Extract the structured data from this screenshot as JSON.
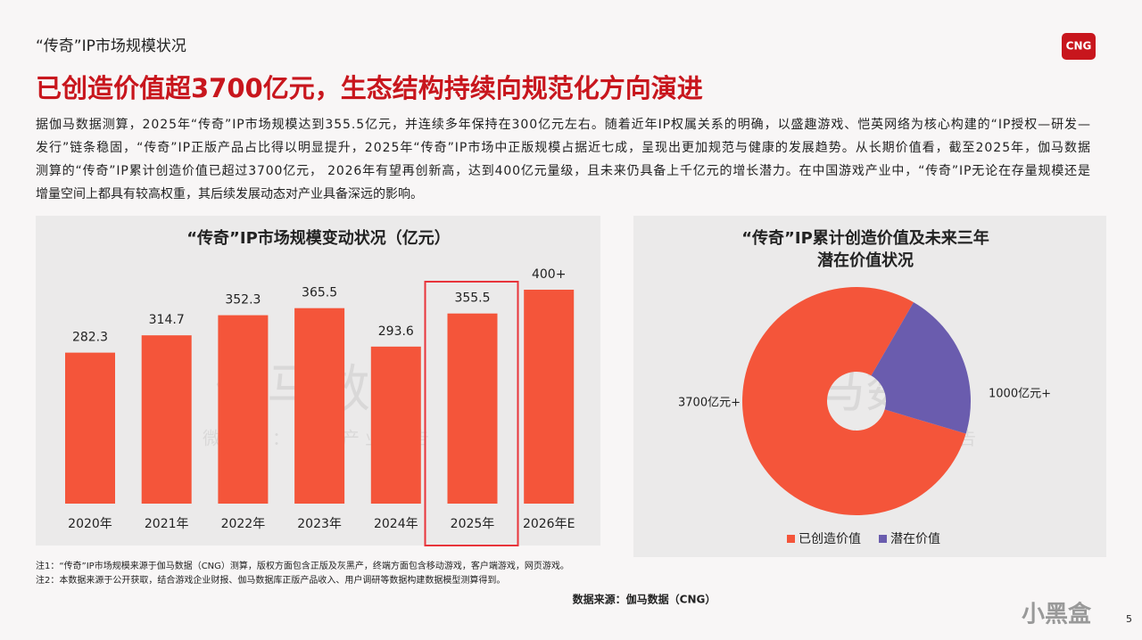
{
  "header": {
    "section": "“传奇”IP市场规模状况",
    "title": "已创造价值超3700亿元，生态结构持续向规范化方向演进",
    "logo": "CNG"
  },
  "paragraph": [
    "据伽马数据测算，2025年“传奇”IP市场规模达到355.5亿元，并连续多年保持在300亿元左右。随着近年IP权属关系的明确，以盛趣游戏、恺英网络为核心构建的“IP授权—研发—",
    "发行”链条稳固，“传奇”IP正版产品占比得以明显提升，2025年“传奇”IP市场中正版规模占据近七成，呈现出更加规范与健康的发展趋势。从长期价值看，截至2025年，伽马数据",
    "测算的“传奇”IP累计创造价值已超过3700亿元， 2026年有望再创新高，达到400亿元量级，且未来仍具备上千亿元的增长潜力。在中国游戏产业中，“传奇”IP无论在存量规模还是",
    "增量空间上都具有较高权重，其后续发展动态对产业具备深远的影响。"
  ],
  "chart_data": [
    {
      "type": "bar",
      "title": "“传奇”IP市场规模变动状况（亿元）",
      "categories": [
        "2020年",
        "2021年",
        "2022年",
        "2023年",
        "2024年",
        "2025年",
        "2026年E"
      ],
      "values": [
        282.3,
        314.7,
        352.3,
        365.5,
        293.6,
        355.5,
        400
      ],
      "value_labels": [
        "282.3",
        "314.7",
        "352.3",
        "365.5",
        "293.6",
        "355.5",
        "400+"
      ],
      "color": "#f4553a",
      "highlight_index": 5
    },
    {
      "type": "pie",
      "title": [
        "“传奇”IP累计创造价值及未来三年",
        "潜在价值状况"
      ],
      "categories": [
        "已创造价值",
        "潜在价值"
      ],
      "values": [
        3700,
        1000
      ],
      "value_labels": [
        "3700亿元+",
        "1000亿元+"
      ],
      "colors": [
        "#f4553a",
        "#6a5cae"
      ]
    }
  ],
  "watermark": {
    "main": "伽马数据",
    "sub": "微信号：游戏产业报告"
  },
  "notes": [
    "注1：“传奇”IP市场规模来源于伽马数据（CNG）测算，版权方面包含正版及灰黑产，终端方面包含移动游戏，客户端游戏，网页游戏。",
    "注2：本数据来源于公开获取，结合游戏企业财报、伽马数据库正版产品收入、用户调研等数据构建数据模型测算得到。"
  ],
  "source": "数据来源：伽马数据（CNG）",
  "brand": "小黑盒",
  "page": "5"
}
